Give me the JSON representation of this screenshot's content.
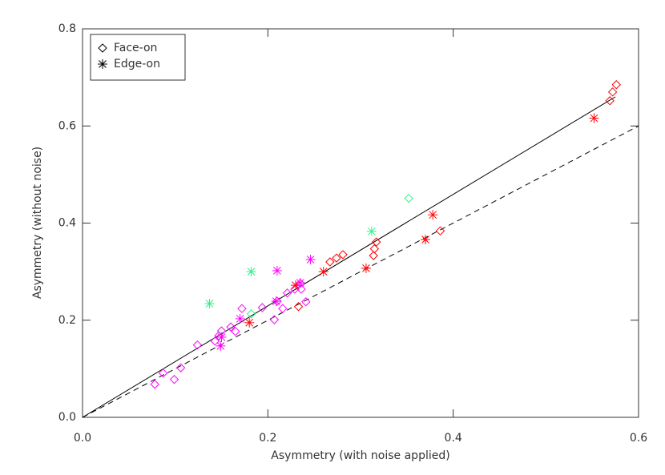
{
  "chart_data": {
    "type": "scatter",
    "xlabel": "Asymmetry (with noise applied)",
    "ylabel": "Asymmetry (without noise)",
    "xlim": [
      0,
      0.6
    ],
    "ylim": [
      0,
      0.8
    ],
    "xticks": [
      {
        "value": 0,
        "label": "0.0"
      },
      0.2,
      0.4,
      0.6
    ],
    "yticks": [
      {
        "value": 0,
        "label": "0.0"
      },
      0.2,
      0.4,
      0.6,
      0.8
    ],
    "legend": "upper left",
    "legend_color": "#000000",
    "lines": [
      {
        "x": [
          0,
          0.575
        ],
        "y": [
          0,
          0.66
        ],
        "style": "solid",
        "color": "#000000"
      },
      {
        "x": [
          0,
          0.6
        ],
        "y": [
          0,
          0.6
        ],
        "style": "dashed",
        "color": "#000000"
      }
    ],
    "series": [
      {
        "name": "Face-on",
        "marker": "diamond",
        "x": [
          0.576,
          0.572,
          0.569,
          0.386,
          0.317,
          0.315,
          0.314,
          0.281,
          0.274,
          0.267,
          0.233,
          0.352,
          0.182,
          0.078,
          0.087,
          0.099,
          0.106,
          0.124,
          0.143,
          0.147,
          0.15,
          0.16,
          0.165,
          0.172,
          0.194,
          0.207,
          0.21,
          0.216,
          0.221,
          0.229,
          0.235,
          0.236,
          0.241
        ],
        "values": [
          0.685,
          0.67,
          0.652,
          0.384,
          0.361,
          0.347,
          0.333,
          0.335,
          0.328,
          0.32,
          0.228,
          0.451,
          0.213,
          0.068,
          0.091,
          0.078,
          0.102,
          0.149,
          0.157,
          0.168,
          0.178,
          0.186,
          0.177,
          0.224,
          0.226,
          0.201,
          0.239,
          0.224,
          0.256,
          0.264,
          0.276,
          0.264,
          0.238
        ],
        "colors": [
          "#ff0000",
          "#ff0000",
          "#ff0000",
          "#ff0000",
          "#ff0000",
          "#ff0000",
          "#ff0000",
          "#ff0000",
          "#ff0000",
          "#ff0000",
          "#ff0000",
          "#33ee88",
          "#33ee88",
          "#ff00ff",
          "#ff00ff",
          "#ff00ff",
          "#ff00ff",
          "#ff00ff",
          "#ff00ff",
          "#ff00ff",
          "#ff00ff",
          "#ff00ff",
          "#ff00ff",
          "#ff00ff",
          "#ff00ff",
          "#ff00ff",
          "#ff00ff",
          "#ff00ff",
          "#ff00ff",
          "#ff00ff",
          "#ff00ff",
          "#ff00ff",
          "#ff00ff"
        ]
      },
      {
        "name": "Edge-on",
        "marker": "asterisk",
        "x": [
          0.552,
          0.378,
          0.37,
          0.306,
          0.26,
          0.23,
          0.18,
          0.312,
          0.182,
          0.137,
          0.246,
          0.21,
          0.235,
          0.209,
          0.17,
          0.15,
          0.149
        ],
        "values": [
          0.616,
          0.417,
          0.366,
          0.307,
          0.3,
          0.272,
          0.195,
          0.383,
          0.3,
          0.234,
          0.325,
          0.302,
          0.277,
          0.239,
          0.203,
          0.165,
          0.147
        ],
        "colors": [
          "#ff0000",
          "#ff0000",
          "#ff0000",
          "#ff0000",
          "#ff0000",
          "#ff0000",
          "#ff0000",
          "#33ee88",
          "#33ee88",
          "#33ee88",
          "#ff00ff",
          "#ff00ff",
          "#ff00ff",
          "#ff00ff",
          "#ff00ff",
          "#ff00ff",
          "#ff00ff"
        ]
      }
    ]
  }
}
